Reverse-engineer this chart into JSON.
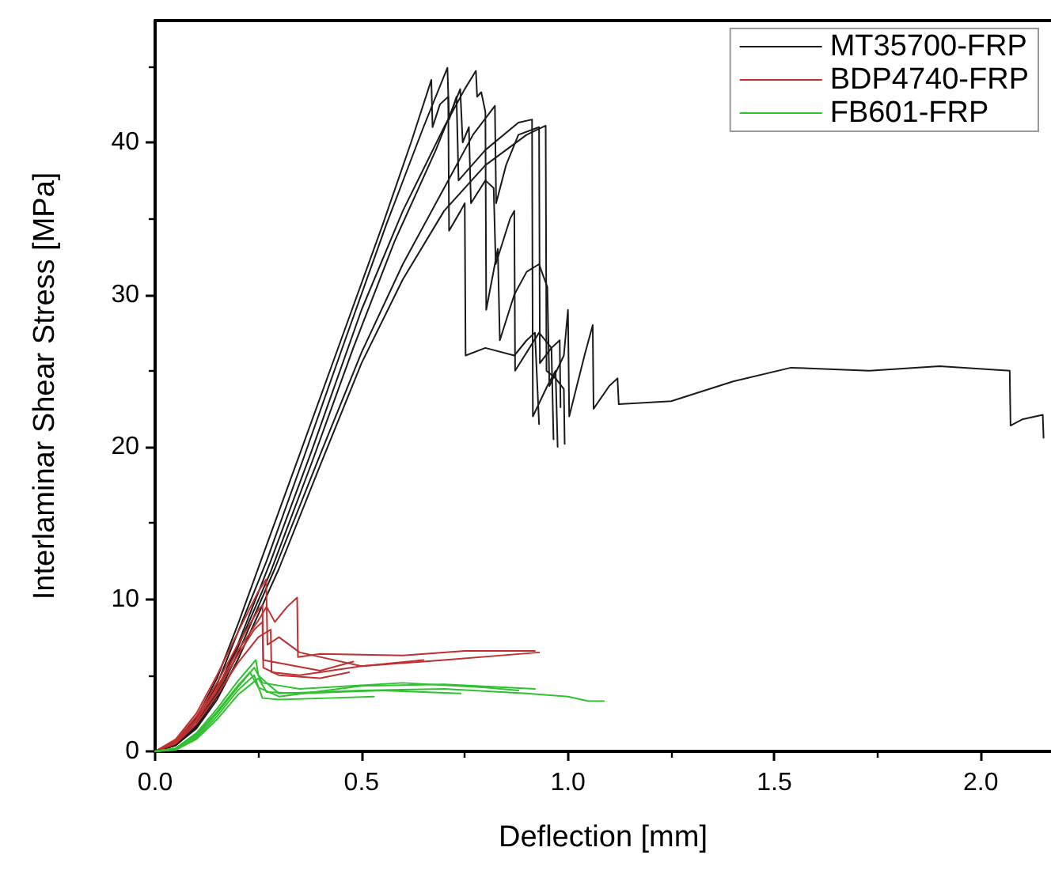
{
  "chart_data": {
    "type": "line",
    "xlabel": "Deflection [mm]",
    "ylabel": "Interlaminar Shear Stress [MPa]",
    "xlim": [
      0,
      2.17
    ],
    "xticks": [
      {
        "value": 0,
        "label": "0.0"
      },
      0.5,
      {
        "value": 1,
        "label": "1.0"
      },
      1.5,
      {
        "value": 2,
        "label": "2.0"
      }
    ],
    "ylim": [
      0,
      48
    ],
    "yticks": [
      0,
      10,
      20,
      30,
      40
    ],
    "grid": false,
    "legend": "top right",
    "marker": "none",
    "line_style": "solid",
    "series": [
      {
        "name": "MT35700-FRP",
        "color": "#1a1a1a",
        "x": [
          0,
          0.05,
          0.1,
          0.15,
          0.2,
          0.26,
          0.35,
          0.45,
          0.55,
          0.62,
          0.669,
          0.672,
          0.69,
          0.71,
          0.712,
          0.74,
          0.75,
          0.752,
          0.8,
          0.87,
          0.9,
          0.92,
          0.93
        ],
        "values": [
          0,
          0.6,
          2.2,
          4.8,
          8.3,
          12.8,
          19.5,
          27,
          34.5,
          40,
          44.1,
          41,
          42.5,
          43,
          34.2,
          35.5,
          36,
          26,
          26.5,
          26,
          27,
          27.5,
          21.5
        ]
      },
      {
        "color": "#1a1a1a",
        "x": [
          0,
          0.05,
          0.1,
          0.15,
          0.2,
          0.27,
          0.36,
          0.46,
          0.56,
          0.65,
          0.708,
          0.712,
          0.73,
          0.735,
          0.8,
          0.88,
          0.913,
          0.915,
          0.95,
          0.97,
          0.975
        ],
        "values": [
          0,
          0.5,
          2,
          4.4,
          7.8,
          12.5,
          19.3,
          27,
          34.6,
          41,
          44.9,
          41.5,
          43,
          37.5,
          39.5,
          41.3,
          41.5,
          22,
          24,
          25,
          20
        ]
      },
      {
        "color": "#1a1a1a",
        "x": [
          0,
          0.05,
          0.1,
          0.15,
          0.2,
          0.28,
          0.38,
          0.5,
          0.6,
          0.7,
          0.75,
          0.777,
          0.78,
          0.79,
          0.8,
          0.802,
          0.83,
          0.835,
          0.87,
          0.9,
          0.93,
          0.95,
          0.955,
          0.99,
          1.0,
          1.003,
          1.04,
          1.06,
          1.062,
          1.1,
          1.12,
          1.123,
          1.25,
          1.4,
          1.54,
          1.73,
          1.9,
          2.07,
          2.072,
          2.1,
          2.15,
          2.152
        ],
        "values": [
          0,
          0.5,
          1.8,
          4,
          7,
          12.5,
          19.8,
          29,
          35.5,
          41,
          43.5,
          44.7,
          43,
          43.3,
          42,
          29,
          33,
          27,
          30,
          31.5,
          32,
          30.5,
          24,
          26,
          29,
          22,
          26,
          28,
          22.5,
          24,
          24.5,
          22.8,
          23,
          24.3,
          25.2,
          25,
          25.3,
          25,
          21.4,
          21.8,
          22.1,
          20.6
        ]
      },
      {
        "color": "#1a1a1a",
        "x": [
          0,
          0.05,
          0.1,
          0.15,
          0.2,
          0.28,
          0.38,
          0.48,
          0.58,
          0.68,
          0.739,
          0.745,
          0.76,
          0.765,
          0.8,
          0.82,
          0.825,
          0.86,
          0.87,
          0.872,
          0.93,
          0.96,
          0.965
        ],
        "values": [
          0,
          0.4,
          1.7,
          3.8,
          6.8,
          11.8,
          19,
          26.5,
          33.5,
          39.5,
          43.5,
          40,
          41,
          36,
          37.5,
          37,
          32,
          35,
          35.5,
          25,
          27.5,
          26.5,
          20.5
        ]
      },
      {
        "color": "#1a1a1a",
        "x": [
          0,
          0.05,
          0.1,
          0.15,
          0.2,
          0.29,
          0.4,
          0.5,
          0.6,
          0.7,
          0.77,
          0.823,
          0.826,
          0.85,
          0.88,
          0.93,
          0.932,
          0.96,
          0.98,
          0.982
        ],
        "values": [
          0,
          0.4,
          1.6,
          3.6,
          6.4,
          12,
          19.5,
          26.2,
          32,
          37,
          40.5,
          42.4,
          36,
          38.5,
          40.5,
          41,
          25.5,
          26.5,
          27,
          22.6
        ]
      },
      {
        "color": "#1a1a1a",
        "x": [
          0,
          0.05,
          0.1,
          0.15,
          0.2,
          0.3,
          0.4,
          0.5,
          0.6,
          0.7,
          0.8,
          0.9,
          0.946,
          0.948,
          0.97,
          0.99,
          0.992
        ],
        "values": [
          0,
          0.4,
          1.5,
          3.4,
          6,
          12,
          18.8,
          25.5,
          31,
          35.5,
          38.5,
          40.5,
          41.1,
          25,
          24.5,
          23.8,
          20.2
        ]
      },
      {
        "name": "BDP4740-FRP",
        "color": "#c03030",
        "x": [
          0,
          0.05,
          0.1,
          0.15,
          0.2,
          0.25,
          0.269,
          0.272,
          0.3,
          0.35,
          0.5,
          0.7,
          0.93
        ],
        "values": [
          0,
          0.8,
          2.5,
          5,
          7.8,
          10.5,
          11.3,
          7,
          7.5,
          6.5,
          5.6,
          6,
          6.5
        ]
      },
      {
        "color": "#c03030",
        "x": [
          0,
          0.05,
          0.1,
          0.15,
          0.2,
          0.25,
          0.27,
          0.29,
          0.32,
          0.344,
          0.346,
          0.4,
          0.6,
          0.75,
          0.92
        ],
        "values": [
          0,
          0.6,
          2.1,
          4.2,
          6.6,
          8.6,
          9.5,
          8.5,
          9.5,
          10.1,
          6.2,
          6.4,
          6.3,
          6.6,
          6.6
        ]
      },
      {
        "color": "#c03030",
        "x": [
          0,
          0.05,
          0.1,
          0.15,
          0.2,
          0.25,
          0.26,
          0.262,
          0.3,
          0.4,
          0.48
        ],
        "values": [
          0,
          0.7,
          2.3,
          4.5,
          7,
          9.3,
          9.6,
          6,
          5.8,
          5.3,
          5.9
        ]
      },
      {
        "color": "#c03030",
        "x": [
          0,
          0.05,
          0.1,
          0.15,
          0.2,
          0.24,
          0.26,
          0.262,
          0.3,
          0.4,
          0.47
        ],
        "values": [
          0,
          0.6,
          2,
          4,
          6.3,
          8,
          8.5,
          5.5,
          5,
          4.8,
          5.2
        ]
      },
      {
        "color": "#c03030",
        "x": [
          0,
          0.05,
          0.1,
          0.15,
          0.2,
          0.25,
          0.28,
          0.282,
          0.35,
          0.5,
          0.65
        ],
        "values": [
          0,
          0.5,
          1.8,
          3.7,
          5.8,
          7.5,
          8,
          5.2,
          5,
          5.6,
          6
        ]
      },
      {
        "name": "FB601-FRP",
        "color": "#30c030",
        "x": [
          0,
          0.05,
          0.1,
          0.15,
          0.2,
          0.244,
          0.25,
          0.27,
          0.3,
          0.5,
          0.7,
          0.9,
          1.0,
          1.05,
          1.087
        ],
        "values": [
          0,
          0.2,
          1.2,
          2.8,
          4.6,
          6,
          5,
          4.5,
          3.8,
          4,
          4.1,
          3.8,
          3.6,
          3.3,
          3.3
        ]
      },
      {
        "color": "#30c030",
        "x": [
          0,
          0.05,
          0.1,
          0.15,
          0.2,
          0.23,
          0.25,
          0.3,
          0.5,
          0.7,
          0.92
        ],
        "values": [
          0,
          0.2,
          1.1,
          2.6,
          4.3,
          5.2,
          4.2,
          3.6,
          4.3,
          4.4,
          4.1
        ]
      },
      {
        "color": "#30c030",
        "x": [
          0,
          0.05,
          0.1,
          0.15,
          0.2,
          0.24,
          0.26,
          0.3,
          0.42,
          0.53
        ],
        "values": [
          0,
          0.1,
          0.9,
          2.3,
          4,
          5,
          3.5,
          3.4,
          3.5,
          3.6
        ]
      },
      {
        "color": "#30c030",
        "x": [
          0,
          0.05,
          0.1,
          0.15,
          0.2,
          0.25,
          0.27,
          0.35,
          0.55,
          0.74
        ],
        "values": [
          0,
          0.1,
          0.8,
          2.1,
          3.7,
          4.8,
          3.9,
          3.8,
          4,
          3.8
        ]
      },
      {
        "color": "#30c030",
        "x": [
          0,
          0.05,
          0.1,
          0.15,
          0.2,
          0.24,
          0.26,
          0.35,
          0.6,
          0.8,
          0.88
        ],
        "values": [
          0,
          0.2,
          1,
          2.5,
          4.2,
          5.5,
          4.5,
          4.1,
          4.5,
          4.2,
          4
        ]
      }
    ]
  }
}
